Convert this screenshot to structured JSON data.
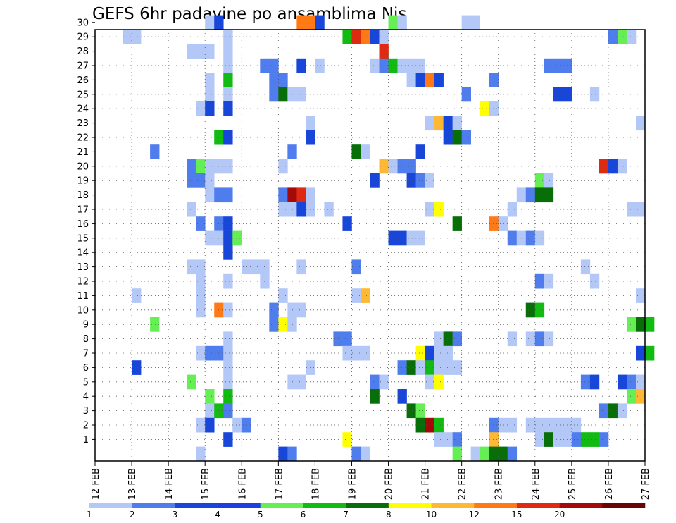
{
  "chart_data": {
    "type": "heatmap",
    "title": "GEFS 6hr padavine po ansamblima Nis",
    "x_tick_labels": [
      "12 FEB",
      "13 FEB",
      "14 FEB",
      "15 FEB",
      "16 FEB",
      "17 FEB",
      "18 FEB",
      "19 FEB",
      "20 FEB",
      "21 FEB",
      "22 FEB",
      "23 FEB",
      "24 FEB",
      "25 FEB",
      "26 FEB",
      "27 FEB"
    ],
    "y_tick_labels": [
      "1",
      "2",
      "3",
      "4",
      "5",
      "6",
      "7",
      "8",
      "9",
      "10",
      "11",
      "12",
      "13",
      "14",
      "15",
      "16",
      "17",
      "18",
      "19",
      "20",
      "21",
      "22",
      "23",
      "24",
      "25",
      "26",
      "27",
      "28",
      "29",
      "30"
    ],
    "x_range": [
      "12 FEB 00Z",
      "27 FEB 00Z"
    ],
    "time_step_hours": 6,
    "y_range": [
      0,
      30
    ],
    "grid": "dotted",
    "colorbar": {
      "position": "bottom",
      "labels": [
        "1",
        "2",
        "3",
        "4",
        "5",
        "6",
        "7",
        "8",
        "10",
        "12",
        "15",
        "20"
      ],
      "colors": [
        "#b3c8f7",
        "#4f7ded",
        "#1846d9",
        "#1f3ee0",
        "#66ee55",
        "#11bb11",
        "#086e08",
        "#ffff00",
        "#ffb833",
        "#ff7a15",
        "#dd2a10",
        "#a40a0a",
        "#6a0505"
      ]
    },
    "color_by_level": {
      "1": "#b3c8f7",
      "2": "#4f7ded",
      "3": "#1846d9",
      "4": "#66ee55",
      "5": "#11bb11",
      "6": "#086e08",
      "7": "#ffff00",
      "8": "#ffb833",
      "9": "#ff7a15",
      "10": "#dd2a10",
      "11": "#a40a0a"
    },
    "series_by_member": [
      {
        "member": 30,
        "cells": [
          [
            12,
            1
          ],
          [
            13,
            3
          ],
          [
            22,
            9
          ],
          [
            23,
            9
          ],
          [
            24,
            3
          ],
          [
            32,
            4
          ],
          [
            33,
            1
          ],
          [
            40,
            1
          ],
          [
            41,
            1
          ]
        ]
      },
      {
        "member": 29,
        "cells": [
          [
            3,
            1
          ],
          [
            4,
            1
          ],
          [
            14,
            1
          ],
          [
            27,
            5
          ],
          [
            28,
            10
          ],
          [
            29,
            9
          ],
          [
            30,
            3
          ],
          [
            31,
            1
          ],
          [
            56,
            2
          ],
          [
            57,
            4
          ],
          [
            58,
            1
          ]
        ]
      },
      {
        "member": 28,
        "cells": [
          [
            10,
            1
          ],
          [
            11,
            1
          ],
          [
            12,
            1
          ],
          [
            14,
            1
          ],
          [
            31,
            10
          ]
        ]
      },
      {
        "member": 27,
        "cells": [
          [
            14,
            1
          ],
          [
            18,
            2
          ],
          [
            19,
            2
          ],
          [
            22,
            3
          ],
          [
            24,
            1
          ],
          [
            30,
            1
          ],
          [
            31,
            2
          ],
          [
            32,
            5
          ],
          [
            33,
            1
          ],
          [
            34,
            1
          ],
          [
            35,
            1
          ],
          [
            49,
            2
          ],
          [
            50,
            2
          ],
          [
            51,
            2
          ]
        ]
      },
      {
        "member": 26,
        "cells": [
          [
            12,
            1
          ],
          [
            14,
            5
          ],
          [
            19,
            2
          ],
          [
            20,
            2
          ],
          [
            34,
            1
          ],
          [
            35,
            3
          ],
          [
            36,
            9
          ],
          [
            37,
            3
          ],
          [
            43,
            2
          ]
        ]
      },
      {
        "member": 25,
        "cells": [
          [
            12,
            1
          ],
          [
            14,
            1
          ],
          [
            19,
            2
          ],
          [
            20,
            6
          ],
          [
            21,
            1
          ],
          [
            22,
            1
          ],
          [
            40,
            2
          ],
          [
            50,
            3
          ],
          [
            51,
            3
          ],
          [
            54,
            1
          ]
        ]
      },
      {
        "member": 24,
        "cells": [
          [
            11,
            1
          ],
          [
            12,
            3
          ],
          [
            14,
            3
          ],
          [
            42,
            7
          ],
          [
            43,
            1
          ]
        ]
      },
      {
        "member": 23,
        "cells": [
          [
            23,
            1
          ],
          [
            36,
            1
          ],
          [
            37,
            8
          ],
          [
            38,
            3
          ],
          [
            39,
            1
          ],
          [
            59,
            1
          ]
        ]
      },
      {
        "member": 22,
        "cells": [
          [
            13,
            5
          ],
          [
            14,
            3
          ],
          [
            23,
            3
          ],
          [
            38,
            3
          ],
          [
            39,
            6
          ],
          [
            40,
            2
          ]
        ]
      },
      {
        "member": 21,
        "cells": [
          [
            6,
            2
          ],
          [
            21,
            2
          ],
          [
            28,
            6
          ],
          [
            29,
            1
          ],
          [
            35,
            3
          ]
        ]
      },
      {
        "member": 20,
        "cells": [
          [
            10,
            2
          ],
          [
            11,
            4
          ],
          [
            12,
            1
          ],
          [
            13,
            1
          ],
          [
            14,
            1
          ],
          [
            20,
            1
          ],
          [
            31,
            8
          ],
          [
            32,
            1
          ],
          [
            33,
            2
          ],
          [
            34,
            2
          ],
          [
            55,
            10
          ],
          [
            56,
            3
          ],
          [
            57,
            1
          ]
        ]
      },
      {
        "member": 19,
        "cells": [
          [
            10,
            2
          ],
          [
            11,
            2
          ],
          [
            12,
            1
          ],
          [
            30,
            3
          ],
          [
            34,
            3
          ],
          [
            35,
            2
          ],
          [
            36,
            1
          ],
          [
            48,
            4
          ],
          [
            49,
            1
          ]
        ]
      },
      {
        "member": 18,
        "cells": [
          [
            12,
            1
          ],
          [
            13,
            2
          ],
          [
            14,
            2
          ],
          [
            20,
            2
          ],
          [
            21,
            11
          ],
          [
            22,
            10
          ],
          [
            23,
            1
          ],
          [
            46,
            1
          ],
          [
            47,
            2
          ],
          [
            48,
            6
          ],
          [
            49,
            6
          ]
        ]
      },
      {
        "member": 17,
        "cells": [
          [
            10,
            1
          ],
          [
            20,
            1
          ],
          [
            21,
            1
          ],
          [
            22,
            3
          ],
          [
            23,
            1
          ],
          [
            25,
            1
          ],
          [
            36,
            1
          ],
          [
            37,
            7
          ],
          [
            45,
            1
          ],
          [
            58,
            1
          ],
          [
            59,
            1
          ]
        ]
      },
      {
        "member": 16,
        "cells": [
          [
            11,
            2
          ],
          [
            13,
            2
          ],
          [
            14,
            3
          ],
          [
            27,
            3
          ],
          [
            39,
            6
          ],
          [
            43,
            9
          ],
          [
            44,
            1
          ]
        ]
      },
      {
        "member": 15,
        "cells": [
          [
            12,
            1
          ],
          [
            13,
            1
          ],
          [
            14,
            3
          ],
          [
            15,
            4
          ],
          [
            32,
            3
          ],
          [
            33,
            3
          ],
          [
            34,
            1
          ],
          [
            35,
            1
          ],
          [
            45,
            2
          ],
          [
            46,
            1
          ],
          [
            47,
            2
          ],
          [
            48,
            1
          ]
        ]
      },
      {
        "member": 14,
        "cells": [
          [
            14,
            3
          ]
        ]
      },
      {
        "member": 13,
        "cells": [
          [
            10,
            1
          ],
          [
            11,
            1
          ],
          [
            16,
            1
          ],
          [
            17,
            1
          ],
          [
            18,
            1
          ],
          [
            22,
            1
          ],
          [
            28,
            2
          ],
          [
            53,
            1
          ]
        ]
      },
      {
        "member": 12,
        "cells": [
          [
            11,
            1
          ],
          [
            14,
            1
          ],
          [
            18,
            1
          ],
          [
            48,
            2
          ],
          [
            49,
            1
          ],
          [
            54,
            1
          ]
        ]
      },
      {
        "member": 11,
        "cells": [
          [
            4,
            1
          ],
          [
            11,
            1
          ],
          [
            20,
            1
          ],
          [
            28,
            1
          ],
          [
            29,
            8
          ],
          [
            59,
            1
          ]
        ]
      },
      {
        "member": 10,
        "cells": [
          [
            11,
            1
          ],
          [
            13,
            9
          ],
          [
            14,
            1
          ],
          [
            19,
            2
          ],
          [
            21,
            1
          ],
          [
            22,
            1
          ],
          [
            47,
            6
          ],
          [
            48,
            5
          ]
        ]
      },
      {
        "member": 9,
        "cells": [
          [
            6,
            4
          ],
          [
            19,
            2
          ],
          [
            20,
            7
          ],
          [
            21,
            1
          ],
          [
            58,
            4
          ],
          [
            59,
            6
          ],
          [
            60,
            5
          ]
        ]
      },
      {
        "member": 8,
        "cells": [
          [
            14,
            1
          ],
          [
            26,
            2
          ],
          [
            27,
            2
          ],
          [
            37,
            1
          ],
          [
            38,
            6
          ],
          [
            39,
            2
          ],
          [
            45,
            1
          ],
          [
            47,
            1
          ],
          [
            48,
            2
          ],
          [
            49,
            1
          ]
        ]
      },
      {
        "member": 7,
        "cells": [
          [
            11,
            1
          ],
          [
            12,
            2
          ],
          [
            13,
            2
          ],
          [
            14,
            1
          ],
          [
            27,
            1
          ],
          [
            28,
            1
          ],
          [
            29,
            1
          ],
          [
            35,
            7
          ],
          [
            36,
            3
          ],
          [
            37,
            1
          ],
          [
            38,
            1
          ],
          [
            59,
            3
          ],
          [
            60,
            5
          ]
        ]
      },
      {
        "member": 6,
        "cells": [
          [
            4,
            3
          ],
          [
            14,
            1
          ],
          [
            23,
            1
          ],
          [
            33,
            2
          ],
          [
            34,
            6
          ],
          [
            35,
            1
          ],
          [
            36,
            5
          ],
          [
            37,
            1
          ],
          [
            38,
            1
          ],
          [
            39,
            1
          ]
        ]
      },
      {
        "member": 5,
        "cells": [
          [
            10,
            4
          ],
          [
            14,
            1
          ],
          [
            21,
            1
          ],
          [
            22,
            1
          ],
          [
            30,
            2
          ],
          [
            31,
            1
          ],
          [
            36,
            1
          ],
          [
            37,
            7
          ],
          [
            53,
            2
          ],
          [
            54,
            3
          ],
          [
            57,
            3
          ],
          [
            58,
            2
          ],
          [
            59,
            1
          ]
        ]
      },
      {
        "member": 4,
        "cells": [
          [
            12,
            4
          ],
          [
            14,
            5
          ],
          [
            30,
            6
          ],
          [
            33,
            3
          ],
          [
            58,
            4
          ],
          [
            59,
            8
          ]
        ]
      },
      {
        "member": 3,
        "cells": [
          [
            12,
            1
          ],
          [
            13,
            5
          ],
          [
            14,
            2
          ],
          [
            34,
            6
          ],
          [
            35,
            4
          ],
          [
            55,
            2
          ],
          [
            56,
            6
          ],
          [
            57,
            1
          ]
        ]
      },
      {
        "member": 2,
        "cells": [
          [
            11,
            1
          ],
          [
            12,
            3
          ],
          [
            15,
            1
          ],
          [
            16,
            2
          ],
          [
            35,
            6
          ],
          [
            36,
            11
          ],
          [
            37,
            5
          ],
          [
            43,
            2
          ],
          [
            44,
            1
          ],
          [
            45,
            1
          ],
          [
            47,
            1
          ],
          [
            48,
            1
          ],
          [
            49,
            1
          ],
          [
            50,
            1
          ],
          [
            51,
            1
          ],
          [
            52,
            1
          ]
        ]
      },
      {
        "member": 1,
        "cells": [
          [
            14,
            3
          ],
          [
            27,
            7
          ],
          [
            37,
            1
          ],
          [
            38,
            1
          ],
          [
            39,
            2
          ],
          [
            43,
            8
          ],
          [
            48,
            1
          ],
          [
            49,
            6
          ],
          [
            50,
            1
          ],
          [
            51,
            1
          ],
          [
            52,
            2
          ],
          [
            53,
            5
          ],
          [
            54,
            5
          ],
          [
            55,
            2
          ]
        ]
      },
      {
        "member": 0,
        "cells": [
          [
            11,
            1
          ],
          [
            20,
            3
          ],
          [
            21,
            2
          ],
          [
            28,
            2
          ],
          [
            29,
            1
          ],
          [
            39,
            4
          ],
          [
            41,
            1
          ],
          [
            42,
            4
          ],
          [
            43,
            6
          ],
          [
            44,
            6
          ],
          [
            45,
            2
          ]
        ]
      }
    ]
  }
}
